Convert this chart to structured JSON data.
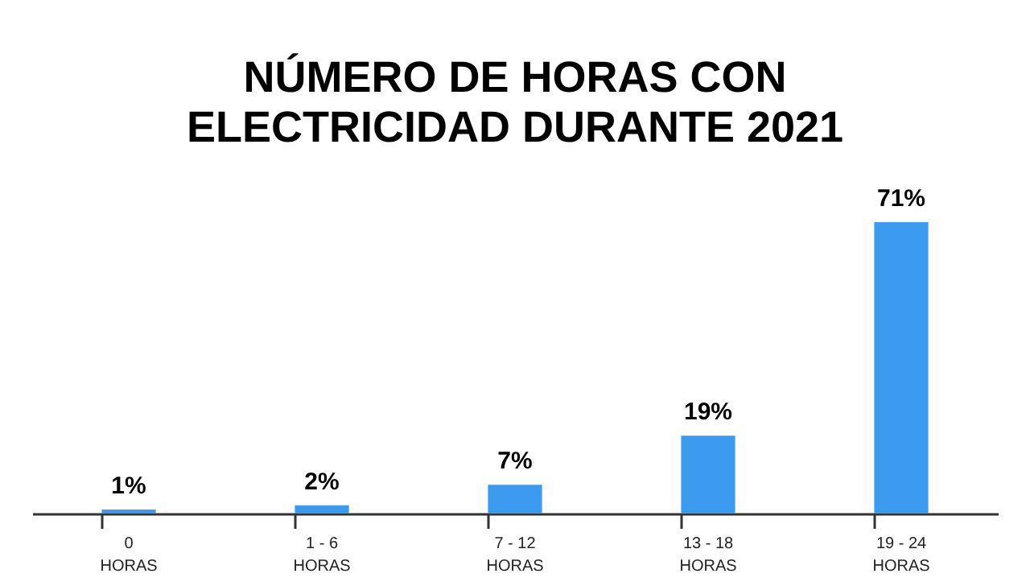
{
  "chart_data": {
    "type": "bar",
    "title": "NÚMERO DE HORAS CON\nELECTRICIDAD DURANTE 2021",
    "categories": [
      "0\nHORAS",
      "1 - 6\nHORAS",
      "7 - 12\nHORAS",
      "13 - 18\nHORAS",
      "19 - 24\nHORAS"
    ],
    "values": [
      1,
      2,
      7,
      19,
      71
    ],
    "value_labels": [
      "1%",
      "2%",
      "7%",
      "19%",
      "71%"
    ],
    "color": "#3d9bef",
    "grid": false
  }
}
